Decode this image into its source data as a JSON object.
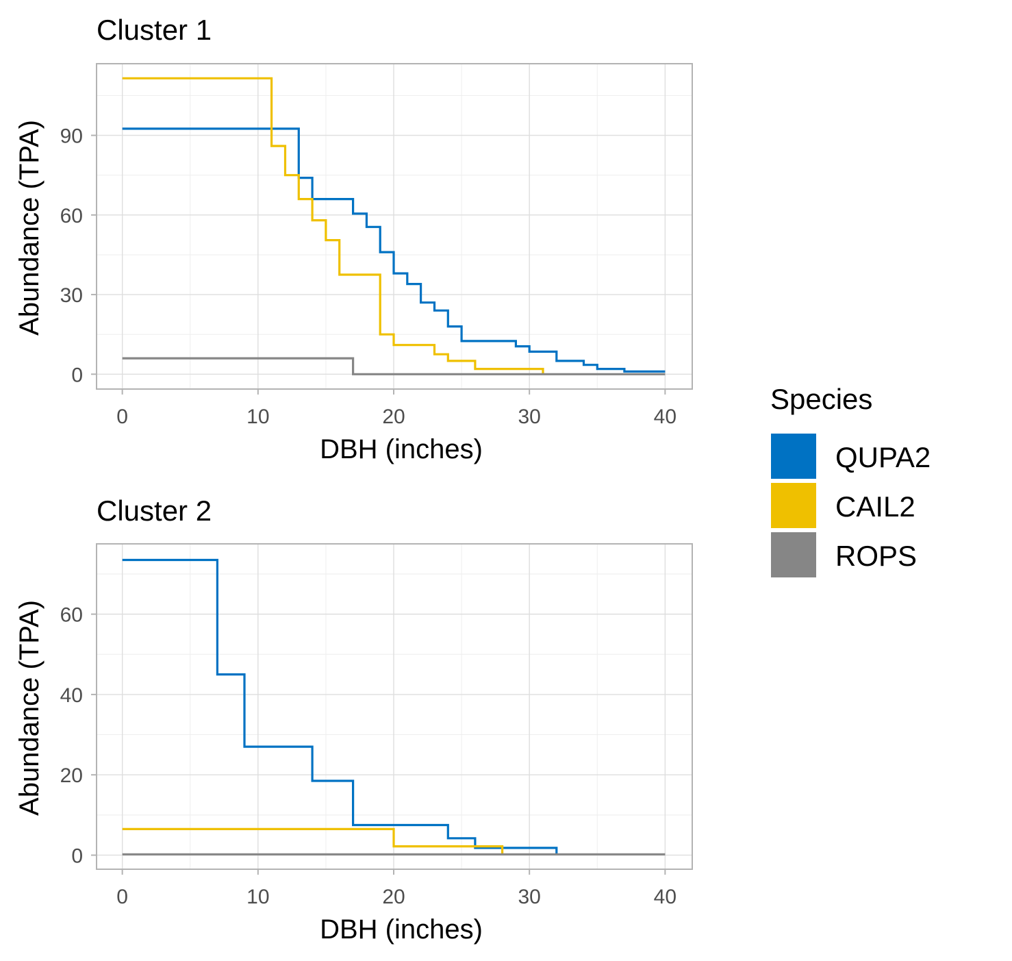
{
  "colors": {
    "QUPA2": "#0072C3",
    "CAIL2": "#EFC000",
    "ROPS": "#868686"
  },
  "legend": {
    "title": "Species",
    "position": "right",
    "items": [
      {
        "label": "QUPA2",
        "color": "#0072C3"
      },
      {
        "label": "CAIL2",
        "color": "#EFC000"
      },
      {
        "label": "ROPS",
        "color": "#868686"
      }
    ]
  },
  "chart_data": [
    {
      "type": "line",
      "step": true,
      "title": "Cluster 1",
      "xlabel": "DBH (inches)",
      "ylabel": "Abundance (TPA)",
      "xlim": [
        -1.9,
        42
      ],
      "ylim": [
        -5.6,
        117
      ],
      "xticks": [
        0,
        10,
        20,
        30,
        40
      ],
      "yticks": [
        0,
        30,
        60,
        90
      ],
      "grid": true,
      "series": [
        {
          "name": "QUPA2",
          "color": "#0072C3",
          "points": [
            [
              0,
              92.5
            ],
            [
              13,
              92.5
            ],
            [
              13,
              74
            ],
            [
              14,
              74
            ],
            [
              14,
              66
            ],
            [
              17,
              66
            ],
            [
              17,
              60.5
            ],
            [
              18,
              60.5
            ],
            [
              18,
              55.5
            ],
            [
              19,
              55.5
            ],
            [
              19,
              46
            ],
            [
              20,
              46
            ],
            [
              20,
              38
            ],
            [
              21,
              38
            ],
            [
              21,
              34
            ],
            [
              22,
              34
            ],
            [
              22,
              27
            ],
            [
              23,
              27
            ],
            [
              23,
              24
            ],
            [
              24,
              24
            ],
            [
              24,
              18
            ],
            [
              25,
              18
            ],
            [
              25,
              12.5
            ],
            [
              29,
              12.5
            ],
            [
              29,
              10.5
            ],
            [
              30,
              10.5
            ],
            [
              30,
              8.5
            ],
            [
              32,
              8.5
            ],
            [
              32,
              5
            ],
            [
              34,
              5
            ],
            [
              34,
              3.5
            ],
            [
              35,
              3.5
            ],
            [
              35,
              2
            ],
            [
              37,
              2
            ],
            [
              37,
              1
            ],
            [
              40,
              1
            ]
          ]
        },
        {
          "name": "CAIL2",
          "color": "#EFC000",
          "points": [
            [
              0,
              111.5
            ],
            [
              11,
              111.5
            ],
            [
              11,
              86
            ],
            [
              12,
              86
            ],
            [
              12,
              75
            ],
            [
              13,
              75
            ],
            [
              13,
              66
            ],
            [
              14,
              66
            ],
            [
              14,
              58
            ],
            [
              15,
              58
            ],
            [
              15,
              50.5
            ],
            [
              16,
              50.5
            ],
            [
              16,
              37.5
            ],
            [
              19,
              37.5
            ],
            [
              19,
              15
            ],
            [
              20,
              15
            ],
            [
              20,
              11
            ],
            [
              23,
              11
            ],
            [
              23,
              7.5
            ],
            [
              24,
              7.5
            ],
            [
              24,
              5
            ],
            [
              26,
              5
            ],
            [
              26,
              2
            ],
            [
              31,
              2
            ],
            [
              31,
              0
            ]
          ]
        },
        {
          "name": "ROPS",
          "color": "#868686",
          "points": [
            [
              0,
              6
            ],
            [
              17,
              6
            ],
            [
              17,
              0
            ],
            [
              40,
              0
            ]
          ]
        }
      ]
    },
    {
      "type": "line",
      "step": true,
      "title": "Cluster 2",
      "xlabel": "DBH (inches)",
      "ylabel": "Abundance (TPA)",
      "xlim": [
        -1.9,
        42
      ],
      "ylim": [
        -3.5,
        77.5
      ],
      "xticks": [
        0,
        10,
        20,
        30,
        40
      ],
      "yticks": [
        0,
        20,
        40,
        60
      ],
      "grid": true,
      "series": [
        {
          "name": "QUPA2",
          "color": "#0072C3",
          "points": [
            [
              0,
              73.5
            ],
            [
              7,
              73.5
            ],
            [
              7,
              45
            ],
            [
              9,
              45
            ],
            [
              9,
              27
            ],
            [
              14,
              27
            ],
            [
              14,
              18.5
            ],
            [
              17,
              18.5
            ],
            [
              17,
              7.5
            ],
            [
              24,
              7.5
            ],
            [
              24,
              4.2
            ],
            [
              26,
              4.2
            ],
            [
              26,
              1.8
            ],
            [
              32,
              1.8
            ],
            [
              32,
              0
            ]
          ]
        },
        {
          "name": "CAIL2",
          "color": "#EFC000",
          "points": [
            [
              0,
              6.5
            ],
            [
              20,
              6.5
            ],
            [
              20,
              2.2
            ],
            [
              28,
              2.2
            ],
            [
              28,
              0
            ]
          ]
        },
        {
          "name": "ROPS",
          "color": "#868686",
          "points": [
            [
              0,
              0.2
            ],
            [
              40,
              0.2
            ]
          ]
        }
      ]
    }
  ]
}
